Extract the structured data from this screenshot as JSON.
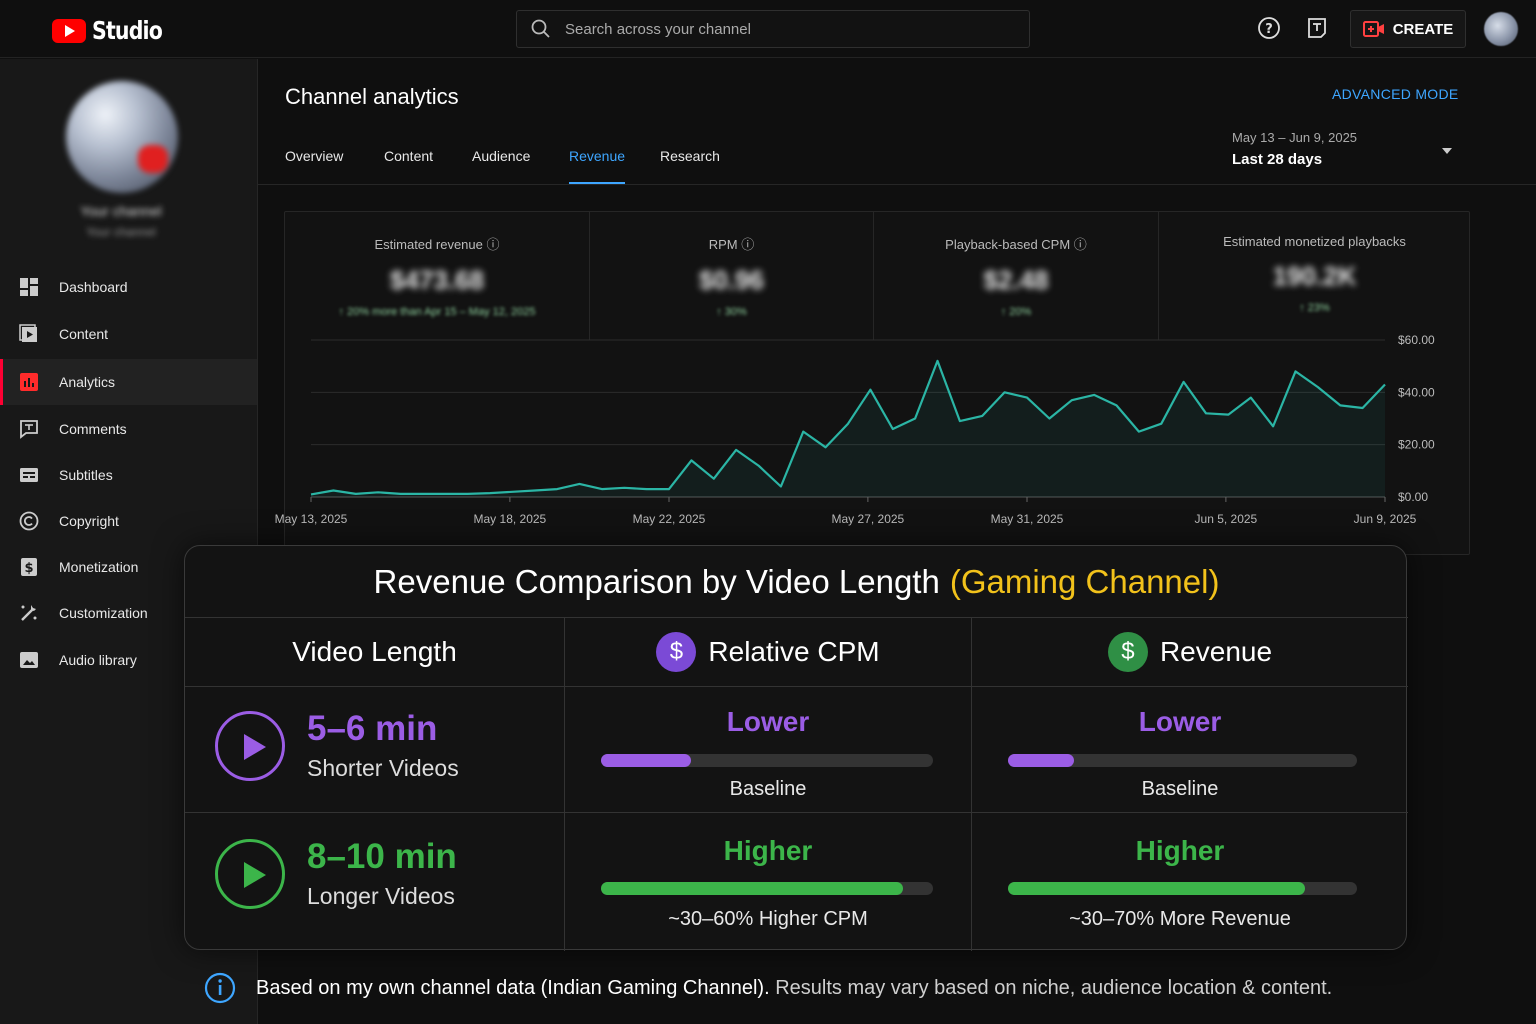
{
  "app": {
    "logo_text": "Studio",
    "search_placeholder": "Search across your channel",
    "create_label": "CREATE"
  },
  "sidebar": {
    "channel_name": "Your channel",
    "channel_sub": "Your channel",
    "items": [
      {
        "label": "Dashboard",
        "icon": "dashboard-icon"
      },
      {
        "label": "Content",
        "icon": "content-icon"
      },
      {
        "label": "Analytics",
        "icon": "analytics-icon",
        "active": true
      },
      {
        "label": "Comments",
        "icon": "comments-icon"
      },
      {
        "label": "Subtitles",
        "icon": "subtitles-icon"
      },
      {
        "label": "Copyright",
        "icon": "copyright-icon"
      },
      {
        "label": "Monetization",
        "icon": "monetization-icon"
      },
      {
        "label": "Customization",
        "icon": "customization-icon"
      },
      {
        "label": "Audio library",
        "icon": "audio-library-icon"
      }
    ]
  },
  "header": {
    "title": "Channel analytics",
    "advanced_mode": "ADVANCED MODE",
    "tabs": [
      "Overview",
      "Content",
      "Audience",
      "Revenue",
      "Research"
    ],
    "active_tab": "Revenue",
    "date_range_sub": "May 13 – Jun 9, 2025",
    "date_range_main": "Last 28 days"
  },
  "metrics": [
    {
      "label": "Estimated revenue",
      "value": "$473.68",
      "delta": "↑ 20% more than Apr 15 – May 12, 2025",
      "info": true
    },
    {
      "label": "RPM",
      "value": "$0.96",
      "delta": "↑ 30%",
      "info": true
    },
    {
      "label": "Playback-based CPM",
      "value": "$2.48",
      "delta": "↑ 20%",
      "info": true
    },
    {
      "label": "Estimated monetized playbacks",
      "value": "190.2K",
      "delta": "↑ 23%",
      "info": false
    }
  ],
  "chart_data": {
    "type": "area",
    "series": [
      {
        "values": [
          1,
          2.5,
          1.2,
          1.8,
          1.2,
          1.2,
          1.2,
          1.2,
          1.5,
          2,
          2.5,
          3,
          5,
          3,
          3.5,
          3,
          3,
          14,
          7,
          18,
          12,
          4,
          25,
          19,
          28,
          41,
          26,
          30,
          52,
          29,
          31,
          40,
          38,
          30,
          37,
          39,
          35,
          25,
          28,
          44,
          32,
          31.5,
          38,
          27,
          48,
          42,
          35,
          34,
          43
        ]
      }
    ],
    "x_start": "May 13, 2025",
    "x_end": "Jun 9, 2025",
    "x_tick_labels": [
      "May 13, 2025",
      "May 18, 2025",
      "May 22, 2025",
      "May 27, 2025",
      "May 31, 2025",
      "Jun 5, 2025",
      "Jun 9, 2025"
    ],
    "y_tick_labels": [
      "$60.00",
      "$40.00",
      "$20.00",
      "$0.00"
    ],
    "ylim": [
      0,
      60
    ],
    "grid": true,
    "line_color": "#2bb5a5"
  },
  "comparison": {
    "title": "Revenue Comparison by Video Length",
    "title_highlight": "(Gaming Channel)",
    "headers": {
      "length": "Video Length",
      "cpm": "Relative CPM",
      "revenue": "Revenue",
      "coin_symbol": "$"
    },
    "rows": [
      {
        "length": "5–6 min",
        "length_sub": "Shorter Videos",
        "color": "#9b5de5",
        "cpm_word": "Lower",
        "cpm_level": 0.27,
        "cpm_note": "Baseline",
        "rev_word": "Lower",
        "rev_level": 0.19,
        "rev_note": "Baseline"
      },
      {
        "length": "8–10 min",
        "length_sub": "Longer Videos",
        "color": "#3cb54a",
        "cpm_word": "Higher",
        "cpm_level": 0.91,
        "cpm_note": "~30–60% Higher CPM",
        "rev_word": "Higher",
        "rev_level": 0.85,
        "rev_note": "~30–70% More Revenue"
      }
    ]
  },
  "footnote": {
    "bold": "Based on my own channel data (Indian Gaming Channel).",
    "rest": "Results may vary based on niche, audience location & content."
  },
  "colors": {
    "accent_blue": "#3ea6ff",
    "brand_red": "#ff0000",
    "purple": "#9b5de5",
    "green": "#3cb54a",
    "yellow": "#f2c21b"
  }
}
